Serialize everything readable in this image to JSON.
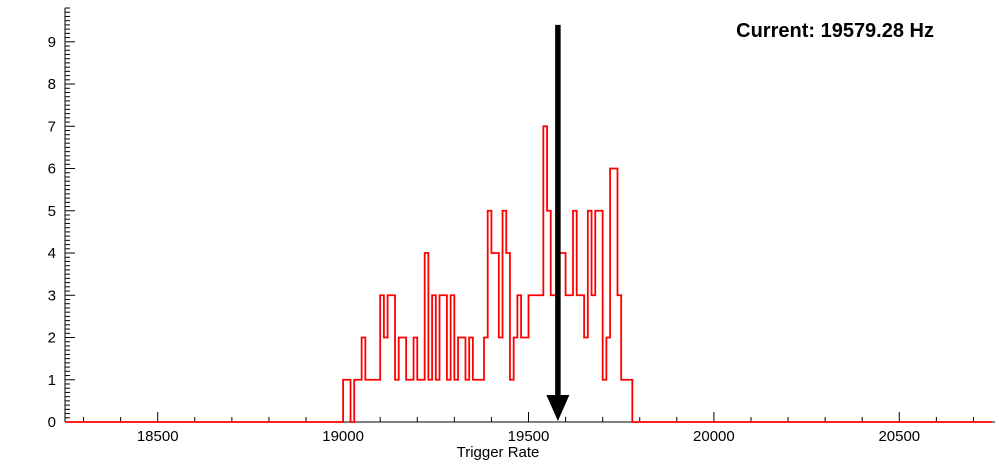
{
  "header": {
    "current_label": "Current: 19579.28 Hz"
  },
  "chart_data": {
    "type": "bar",
    "subtype": "step-histogram",
    "title": "",
    "xlabel": "Trigger Rate",
    "ylabel": "",
    "xlim": [
      18250,
      20750
    ],
    "ylim": [
      0,
      9.8
    ],
    "x_major_ticks": [
      18500,
      19000,
      19500,
      20000,
      20500
    ],
    "x_minor_step": 100,
    "y_major_ticks": [
      0,
      1,
      2,
      3,
      4,
      5,
      6,
      7,
      8,
      9
    ],
    "y_minor_per_major": 10,
    "grid": false,
    "legend": null,
    "series_color": "#ff0000",
    "bin_start": 18990,
    "bin_width": 10,
    "counts": [
      0,
      1,
      1,
      0,
      1,
      1,
      2,
      1,
      1,
      1,
      1,
      3,
      2,
      3,
      3,
      1,
      2,
      2,
      1,
      1,
      2,
      1,
      1,
      4,
      1,
      3,
      1,
      3,
      3,
      1,
      3,
      1,
      2,
      2,
      1,
      2,
      1,
      1,
      1,
      2,
      5,
      4,
      4,
      2,
      5,
      4,
      1,
      2,
      3,
      2,
      2,
      3,
      3,
      3,
      3,
      7,
      5,
      3,
      3,
      4,
      4,
      3,
      3,
      5,
      3,
      3,
      2,
      5,
      3,
      5,
      5,
      1,
      2,
      6,
      6,
      3,
      1,
      1,
      1,
      0
    ],
    "marker": {
      "type": "arrow-down",
      "x": 19579.28,
      "y_top": 9.4,
      "color": "#000000",
      "label": "Current: 19579.28 Hz"
    },
    "current_value_hz": 19579.28
  }
}
